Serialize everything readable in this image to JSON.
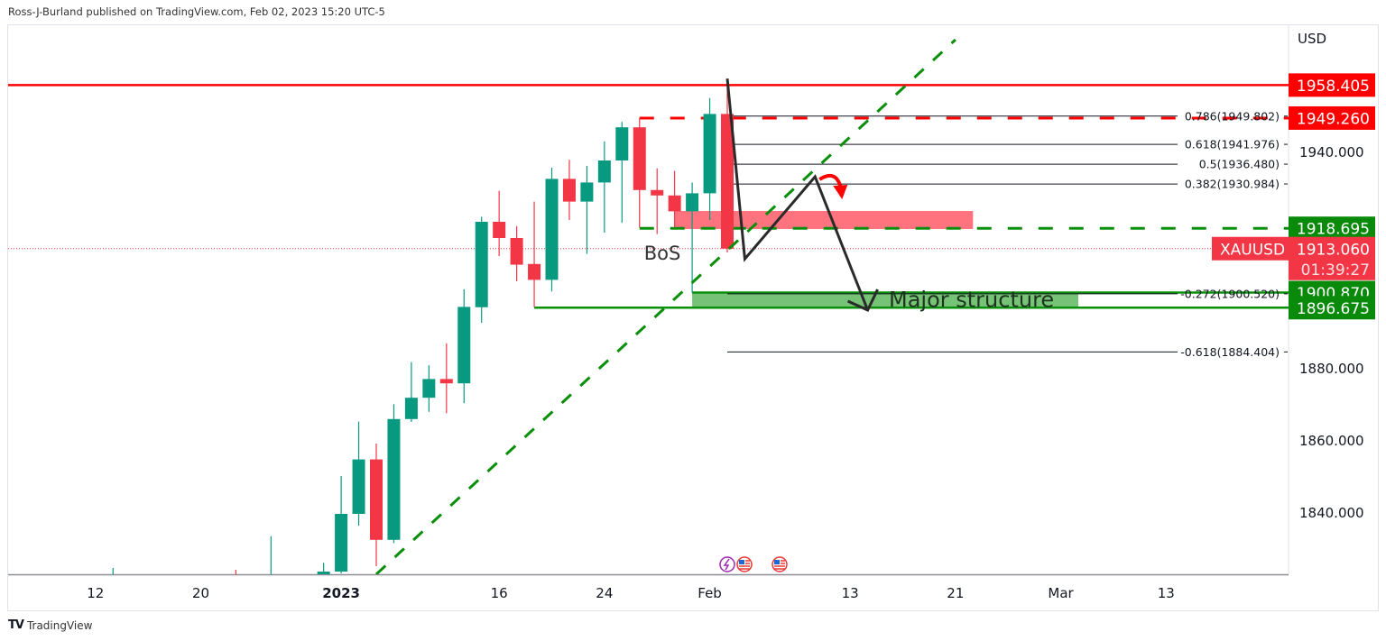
{
  "header": {
    "published": "Ross-J-Burland published on TradingView.com, Feb 02, 2023 15:20 UTC-5"
  },
  "footer": {
    "logo_text": "TradingView"
  },
  "colors": {
    "up": "#089981",
    "down": "#f23645",
    "tag_red": "#ff0000",
    "tag_green": "#0a8a0a",
    "trend": "#0a8f0a",
    "zone_red": "#ff6b78",
    "zone_green": "#6fbf6f"
  },
  "chart_data": {
    "type": "candlestick",
    "symbol": "XAUUSD",
    "currency": "USD",
    "ylim": [
      1822.75,
      1975
    ],
    "grid": false,
    "y_ticks": [
      "1940.000",
      "1880.000",
      "1860.000",
      "1840.000"
    ],
    "x_ticks": [
      {
        "label": "12",
        "date": "2022-12-12"
      },
      {
        "label": "20",
        "date": "2022-12-20"
      },
      {
        "label": "2023",
        "date": "2023-01-03",
        "bold": true
      },
      {
        "label": "16",
        "date": "2023-01-16"
      },
      {
        "label": "24",
        "date": "2023-01-24"
      },
      {
        "label": "Feb",
        "date": "2023-02-01"
      },
      {
        "label": "13",
        "date": "2023-02-13"
      },
      {
        "label": "21",
        "date": "2023-02-21"
      },
      {
        "label": "Mar",
        "date": "2023-03-01"
      },
      {
        "label": "13",
        "date": "2023-03-09"
      }
    ],
    "candles": [
      {
        "date": "2022-12-13",
        "o": 1820,
        "h": 1824.5,
        "l": 1815,
        "c": 1821
      },
      {
        "date": "2022-12-22",
        "o": 1821,
        "h": 1824,
        "l": 1815,
        "c": 1818
      },
      {
        "date": "2022-12-27",
        "o": 1814,
        "h": 1833.3,
        "l": 1810,
        "c": 1818
      },
      {
        "date": "2022-12-30",
        "o": 1822.7,
        "h": 1825.9,
        "l": 1821,
        "c": 1823.5
      },
      {
        "date": "2023-01-03",
        "o": 1823.5,
        "h": 1850,
        "l": 1823,
        "c": 1839.5
      },
      {
        "date": "2023-01-04",
        "o": 1839.5,
        "h": 1865.1,
        "l": 1836.2,
        "c": 1854.6
      },
      {
        "date": "2023-01-05",
        "o": 1854.6,
        "h": 1859,
        "l": 1825,
        "c": 1832.3
      },
      {
        "date": "2023-01-06",
        "o": 1832.3,
        "h": 1869.9,
        "l": 1831.4,
        "c": 1865.8
      },
      {
        "date": "2023-01-09",
        "o": 1865.8,
        "h": 1881.6,
        "l": 1865,
        "c": 1871.7
      },
      {
        "date": "2023-01-10",
        "o": 1871.7,
        "h": 1880.7,
        "l": 1867.8,
        "c": 1876.9
      },
      {
        "date": "2023-01-11",
        "o": 1876.9,
        "h": 1886.8,
        "l": 1867.4,
        "c": 1875.7
      },
      {
        "date": "2023-01-12",
        "o": 1875.7,
        "h": 1901.8,
        "l": 1870.2,
        "c": 1896.9
      },
      {
        "date": "2023-01-13",
        "o": 1896.8,
        "h": 1921.9,
        "l": 1892.5,
        "c": 1920.5
      },
      {
        "date": "2023-01-16",
        "o": 1920.5,
        "h": 1929.1,
        "l": 1911,
        "c": 1916
      },
      {
        "date": "2023-01-17",
        "o": 1916,
        "h": 1919.3,
        "l": 1904,
        "c": 1908.6
      },
      {
        "date": "2023-01-18",
        "o": 1908.8,
        "h": 1926.1,
        "l": 1896.8,
        "c": 1904.4
      },
      {
        "date": "2023-01-19",
        "o": 1904.4,
        "h": 1935.5,
        "l": 1901.2,
        "c": 1932.4
      },
      {
        "date": "2023-01-20",
        "o": 1932.4,
        "h": 1937.7,
        "l": 1921,
        "c": 1926.1
      },
      {
        "date": "2023-01-23",
        "o": 1926.1,
        "h": 1936,
        "l": 1911.6,
        "c": 1931.4
      },
      {
        "date": "2023-01-24",
        "o": 1931.4,
        "h": 1942.8,
        "l": 1917.5,
        "c": 1937.5
      },
      {
        "date": "2023-01-25",
        "o": 1937.5,
        "h": 1948.2,
        "l": 1920.2,
        "c": 1946.7
      },
      {
        "date": "2023-01-26",
        "o": 1946.7,
        "h": 1949.26,
        "l": 1918.9,
        "c": 1929.3
      },
      {
        "date": "2023-01-27",
        "o": 1929.3,
        "h": 1935.3,
        "l": 1917.1,
        "c": 1927.8
      },
      {
        "date": "2023-01-30",
        "o": 1927.8,
        "h": 1934.6,
        "l": 1918.9,
        "c": 1923.4
      },
      {
        "date": "2023-01-31",
        "o": 1923.4,
        "h": 1931.4,
        "l": 1900.87,
        "c": 1928.4
      },
      {
        "date": "2023-02-01",
        "o": 1928.4,
        "h": 1954.8,
        "l": 1921,
        "c": 1950.4
      },
      {
        "date": "2023-02-02",
        "o": 1950.4,
        "h": 1958.405,
        "l": 1912,
        "c": 1913.06
      }
    ],
    "current_price": {
      "symbol": "XAUUSD",
      "price": "1913.060",
      "countdown": "01:39:27",
      "value": 1913.06
    },
    "price_tags": [
      {
        "label": "1958.405",
        "value": 1958.405,
        "color": "red"
      },
      {
        "label": "1949.260",
        "value": 1949.26,
        "color": "red"
      },
      {
        "label": "1918.695",
        "value": 1918.695,
        "color": "green"
      },
      {
        "label": "1900.870",
        "value": 1900.87,
        "color": "green"
      },
      {
        "label": "1896.675",
        "value": 1896.675,
        "color": "green"
      }
    ],
    "horizontal_lines": [
      {
        "value": 1958.405,
        "from": "start",
        "style": "solid",
        "color": "red"
      },
      {
        "value": 1949.26,
        "from": "2023-01-26",
        "style": "dashed",
        "color": "red"
      },
      {
        "value": 1918.695,
        "from": "2023-01-26",
        "style": "dashed",
        "color": "green"
      },
      {
        "value": 1900.87,
        "from": "2023-01-31",
        "style": "solid",
        "color": "green"
      },
      {
        "value": 1896.675,
        "from": "2023-01-18",
        "style": "solid",
        "color": "green"
      }
    ],
    "fib_levels": [
      {
        "label": "0.786(1949.802)",
        "value": 1949.802
      },
      {
        "label": "0.618(1941.976)",
        "value": 1941.976
      },
      {
        "label": "0.5(1936.480)",
        "value": 1936.48
      },
      {
        "label": "0.382(1930.984)",
        "value": 1930.984
      },
      {
        "label": "-0.272(1900.520)",
        "value": 1900.52
      },
      {
        "label": "-0.618(1884.404)",
        "value": 1884.404
      }
    ],
    "fib_start": "2023-02-02",
    "trendline": [
      {
        "date": "2023-01-05",
        "value": 1822.75
      },
      {
        "date": "2023-02-21",
        "value": 1971
      }
    ],
    "zigzag_projection": [
      {
        "date": "2023-02-02",
        "value": 1960.2
      },
      {
        "date": "2023-02-03",
        "value": 1910.2
      },
      {
        "date": "2023-02-09",
        "value": 1933
      },
      {
        "date": "2023-02-14",
        "value": 1896
      }
    ],
    "zones": [
      {
        "name": "supply",
        "from": "2023-01-30",
        "to": "2023-02-22",
        "top": 1923.5,
        "bottom": 1918.5,
        "color": "red"
      },
      {
        "name": "major-structure",
        "from": "2023-01-31",
        "to": "2023-03-02",
        "top": 1900.87,
        "bottom": 1896.675,
        "color": "green",
        "label": "Major structure"
      }
    ],
    "annotations": [
      {
        "text": "BoS",
        "date": "2023-01-26",
        "value": 1915
      }
    ]
  }
}
